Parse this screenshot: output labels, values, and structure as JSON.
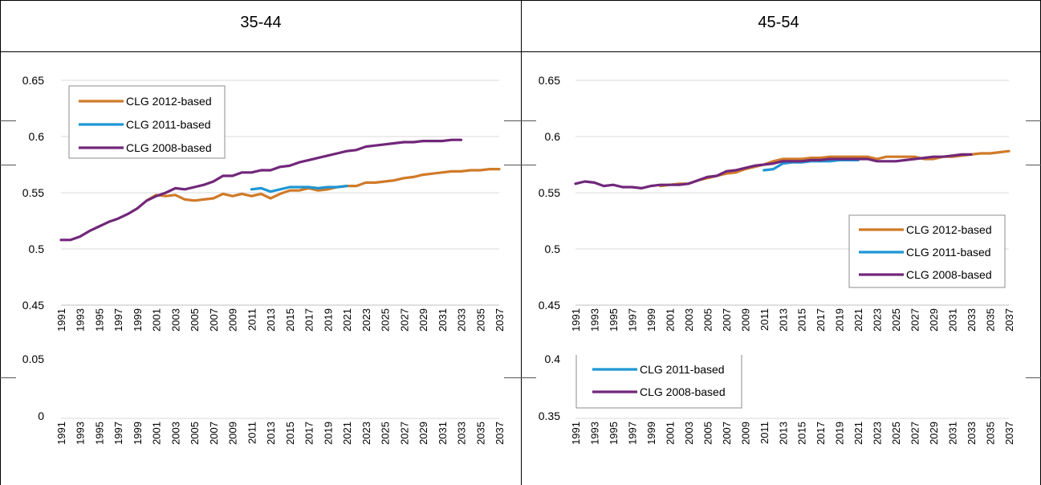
{
  "chart_data": [
    {
      "type": "line",
      "title": "35-44",
      "years": [
        1991,
        1992,
        1993,
        1994,
        1995,
        1996,
        1997,
        1998,
        1999,
        2000,
        2001,
        2002,
        2003,
        2004,
        2005,
        2006,
        2007,
        2008,
        2009,
        2010,
        2011,
        2012,
        2013,
        2014,
        2015,
        2016,
        2017,
        2018,
        2019,
        2020,
        2021,
        2022,
        2023,
        2024,
        2025,
        2026,
        2027,
        2028,
        2029,
        2030,
        2031,
        2032,
        2033,
        2034,
        2035,
        2036,
        2037
      ],
      "x_tick_labels": [
        "1991",
        "1993",
        "1995",
        "1997",
        "1999",
        "2001",
        "2003",
        "2005",
        "2007",
        "2009",
        "2011",
        "2013",
        "2015",
        "2017",
        "2019",
        "2021",
        "2023",
        "2025",
        "2027",
        "2029",
        "2031",
        "2033",
        "2035",
        "2037"
      ],
      "y_ticks": [
        "0.65",
        "0.6",
        "0.55",
        "0.5",
        "0.45"
      ],
      "ylim": [
        0.45,
        0.65
      ],
      "grid": true,
      "legend_position": "top-left",
      "series": [
        {
          "name": "CLG 2012-based",
          "color": "#D07A28",
          "start_year": 2000,
          "values": [
            0.543,
            0.548,
            0.547,
            0.548,
            0.544,
            0.543,
            0.544,
            0.545,
            0.549,
            0.547,
            0.549,
            0.547,
            0.549,
            0.545,
            0.549,
            0.552,
            0.552,
            0.554,
            0.552,
            0.553,
            0.555,
            0.556,
            0.556,
            0.559,
            0.559,
            0.56,
            0.561,
            0.563,
            0.564,
            0.566,
            0.567,
            0.568,
            0.569,
            0.569,
            0.57,
            0.57,
            0.571,
            0.571
          ]
        },
        {
          "name": "CLG 2011-based",
          "color": "#1F96D4",
          "start_year": 2011,
          "values": [
            0.553,
            0.554,
            0.551,
            0.553,
            0.555,
            0.555,
            0.555,
            0.554,
            0.555,
            0.555,
            0.556
          ]
        },
        {
          "name": "CLG 2008-based",
          "color": "#71277A",
          "start_year": 1991,
          "values": [
            0.508,
            0.508,
            0.511,
            0.516,
            0.52,
            0.524,
            0.527,
            0.531,
            0.536,
            0.543,
            0.547,
            0.55,
            0.554,
            0.553,
            0.555,
            0.557,
            0.56,
            0.565,
            0.565,
            0.568,
            0.568,
            0.57,
            0.57,
            0.573,
            0.574,
            0.577,
            0.579,
            0.581,
            0.583,
            0.585,
            0.587,
            0.588,
            0.591,
            0.592,
            0.593,
            0.594,
            0.595,
            0.595,
            0.596,
            0.596,
            0.596,
            0.597,
            0.597
          ]
        }
      ],
      "ghost_y_ticks": [
        "0.05",
        "0"
      ],
      "ghost_legend": []
    },
    {
      "type": "line",
      "title": "45-54",
      "years": [
        1991,
        1992,
        1993,
        1994,
        1995,
        1996,
        1997,
        1998,
        1999,
        2000,
        2001,
        2002,
        2003,
        2004,
        2005,
        2006,
        2007,
        2008,
        2009,
        2010,
        2011,
        2012,
        2013,
        2014,
        2015,
        2016,
        2017,
        2018,
        2019,
        2020,
        2021,
        2022,
        2023,
        2024,
        2025,
        2026,
        2027,
        2028,
        2029,
        2030,
        2031,
        2032,
        2033,
        2034,
        2035,
        2036,
        2037
      ],
      "x_tick_labels": [
        "1991",
        "1993",
        "1995",
        "1997",
        "1999",
        "2001",
        "2003",
        "2005",
        "2007",
        "2009",
        "2011",
        "2013",
        "2015",
        "2017",
        "2019",
        "2021",
        "2023",
        "2025",
        "2027",
        "2029",
        "2031",
        "2033",
        "2035",
        "2037"
      ],
      "y_ticks": [
        "0.65",
        "0.6",
        "0.55",
        "0.5",
        "0.45"
      ],
      "ylim": [
        0.45,
        0.65
      ],
      "grid": true,
      "legend_position": "bottom-right",
      "series": [
        {
          "name": "CLG 2012-based",
          "color": "#D07A28",
          "start_year": 2000,
          "values": [
            0.556,
            0.557,
            0.558,
            0.558,
            0.561,
            0.563,
            0.565,
            0.567,
            0.568,
            0.571,
            0.573,
            0.575,
            0.578,
            0.58,
            0.58,
            0.58,
            0.581,
            0.581,
            0.582,
            0.582,
            0.582,
            0.582,
            0.582,
            0.58,
            0.582,
            0.582,
            0.582,
            0.582,
            0.58,
            0.58,
            0.582,
            0.582,
            0.583,
            0.584,
            0.585,
            0.585,
            0.586,
            0.587
          ]
        },
        {
          "name": "CLG 2011-based",
          "color": "#1F96D4",
          "start_year": 2011,
          "values": [
            0.57,
            0.571,
            0.576,
            0.577,
            0.577,
            0.578,
            0.578,
            0.578,
            0.579,
            0.579,
            0.579
          ]
        },
        {
          "name": "CLG 2008-based",
          "color": "#71277A",
          "start_year": 1991,
          "values": [
            0.558,
            0.56,
            0.559,
            0.556,
            0.557,
            0.555,
            0.555,
            0.554,
            0.556,
            0.557,
            0.557,
            0.557,
            0.558,
            0.561,
            0.564,
            0.565,
            0.569,
            0.57,
            0.572,
            0.574,
            0.575,
            0.576,
            0.578,
            0.578,
            0.578,
            0.579,
            0.579,
            0.58,
            0.58,
            0.58,
            0.58,
            0.58,
            0.578,
            0.578,
            0.578,
            0.579,
            0.58,
            0.581,
            0.582,
            0.582,
            0.583,
            0.584,
            0.584
          ]
        }
      ],
      "ghost_y_ticks": [
        "0.4",
        "0.35"
      ],
      "ghost_legend": [
        {
          "name": "CLG 2011-based",
          "color": "#1F96D4"
        },
        {
          "name": "CLG 2008-based",
          "color": "#71277A"
        }
      ]
    }
  ]
}
